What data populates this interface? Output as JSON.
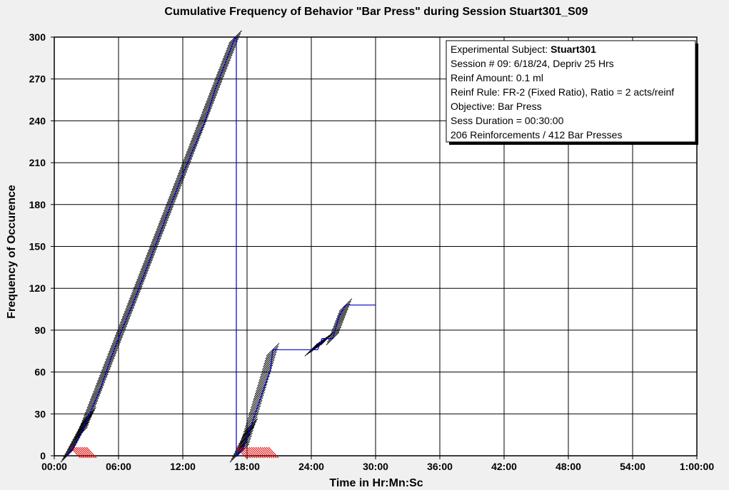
{
  "chart_data": {
    "type": "line",
    "title": "Cumulative Frequency of Behavior \"Bar Press\" during Session Stuart301_S09",
    "xlabel": "Time in Hr:Mn:Sc",
    "ylabel": "Frequency of Occurence",
    "x_unit": "minutes",
    "xlim": [
      0,
      60
    ],
    "ylim": [
      0,
      300
    ],
    "x_ticks": [
      0,
      6,
      12,
      18,
      24,
      30,
      36,
      42,
      48,
      54,
      60
    ],
    "x_tick_labels": [
      "00:00",
      "06:00",
      "12:00",
      "18:00",
      "24:00",
      "30:00",
      "36:00",
      "42:00",
      "48:00",
      "54:00",
      "1:00:00"
    ],
    "y_ticks": [
      0,
      30,
      60,
      90,
      120,
      150,
      180,
      210,
      240,
      270,
      300
    ],
    "grid": true,
    "colors": {
      "cumulative_line": "#0000cc",
      "response_marks": "#000000",
      "reinforcement_marks": "#dd0000",
      "plot_bg": "#ffffff",
      "page_bg": "#f0f0f0"
    },
    "series": [
      {
        "values": [
          [
            1.2,
            0
          ],
          [
            1.8,
            6
          ],
          [
            2.5,
            16
          ],
          [
            3.3,
            30
          ],
          [
            4.3,
            48
          ],
          [
            5.3,
            70
          ],
          [
            6.3,
            90
          ],
          [
            7.5,
            112
          ],
          [
            8.6,
            134
          ],
          [
            9.7,
            156
          ],
          [
            10.8,
            178
          ],
          [
            11.9,
            200
          ],
          [
            13.0,
            220
          ],
          [
            14.1,
            240
          ],
          [
            15.0,
            262
          ],
          [
            16.0,
            282
          ],
          [
            16.9,
            300
          ],
          [
            17.0,
            300
          ],
          [
            17.0,
            0
          ],
          [
            17.6,
            4
          ],
          [
            18.4,
            22
          ],
          [
            19.2,
            40
          ],
          [
            20.2,
            62
          ],
          [
            20.4,
            76
          ],
          [
            24.6,
            76
          ],
          [
            25.0,
            84
          ],
          [
            26.0,
            84
          ],
          [
            26.6,
            100
          ],
          [
            27.2,
            108
          ],
          [
            30.0,
            108
          ]
        ]
      }
    ],
    "response_mark_segments": [
      [
        1.2,
        0,
        3.3,
        30
      ],
      [
        2.5,
        16,
        16.9,
        300
      ],
      [
        17.0,
        0,
        18.4,
        22
      ],
      [
        17.6,
        4,
        20.4,
        76
      ],
      [
        24.0,
        76,
        25.5,
        84
      ],
      [
        26.0,
        84,
        27.2,
        108
      ]
    ],
    "reinforcement_mark_ranges": [
      [
        1.5,
        3.0
      ],
      [
        17.0,
        20.0
      ]
    ],
    "info_box": {
      "lines": [
        {
          "label": "Experimental Subject: ",
          "value": "Stuart301"
        },
        {
          "label": "Session # 09: 6/18/24, Depriv 25 Hrs",
          "value": ""
        },
        {
          "label": "Reinf Amount: 0.1 ml",
          "value": ""
        },
        {
          "label": "Reinf Rule: FR-2 (Fixed Ratio), Ratio = 2 acts/reinf",
          "value": ""
        },
        {
          "label": "Objective: Bar Press",
          "value": ""
        },
        {
          "label": "Sess Duration = 00:30:00",
          "value": ""
        },
        {
          "label": "206 Reinforcements / 412 Bar Presses",
          "value": ""
        }
      ]
    }
  }
}
